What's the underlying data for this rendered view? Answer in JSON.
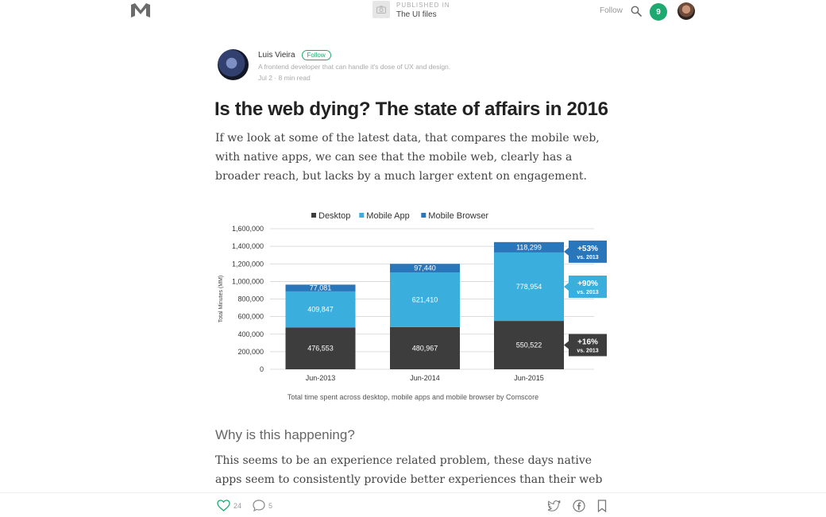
{
  "header": {
    "published_label": "PUBLISHED IN",
    "publication": "The UI files",
    "follow": "Follow",
    "notifications": "9"
  },
  "author": {
    "name": "Luis Vieira",
    "follow": "Follow",
    "bio": "A frontend developer that can handle it's dose of UX and design.",
    "meta": "Jul 2 · 8 min read"
  },
  "article": {
    "title": "Is the web dying? The state of affairs in 2016",
    "intro": "If we look at some of the latest data, that compares the mobile web, with native apps, we can see that the mobile web, clearly has a broader reach, but lacks by a much larger extent on engagement.",
    "caption": "Total time spent across desktop, mobile apps and mobile browser by Comscore",
    "subheading": "Why is this happening?",
    "body": "This seems to be an experience related problem, these days native apps seem to consistently provide better experiences than their web counterparts, with"
  },
  "chart_data": {
    "type": "bar",
    "stacked": true,
    "categories": [
      "Jun-2013",
      "Jun-2014",
      "Jun-2015"
    ],
    "series": [
      {
        "name": "Desktop",
        "color": "#3d3d3d",
        "values": [
          476553,
          480967,
          550522
        ],
        "labels": [
          "476,553",
          "480,967",
          "550,522"
        ]
      },
      {
        "name": "Mobile App",
        "color": "#3aaedc",
        "values": [
          409847,
          621410,
          778954
        ],
        "labels": [
          "409,847",
          "621,410",
          "778,954"
        ]
      },
      {
        "name": "Mobile Browser",
        "color": "#2a76bb",
        "values": [
          77081,
          97440,
          118299
        ],
        "labels": [
          "77,081",
          "97,440",
          "118,299"
        ]
      }
    ],
    "ylabel": "Total Minutes (MM)",
    "ylim": [
      0,
      1600000
    ],
    "yticks": [
      0,
      200000,
      400000,
      600000,
      800000,
      1000000,
      1200000,
      1400000,
      1600000
    ],
    "ytick_labels": [
      "0",
      "200,000",
      "400,000",
      "600,000",
      "800,000",
      "1,000,000",
      "1,200,000",
      "1,400,000",
      "1,600,000"
    ],
    "legend_position": "top",
    "grid": true,
    "annotations": [
      {
        "series": "Mobile Browser",
        "text": "+53%",
        "sub": "vs. 2013",
        "color": "#2a76bb"
      },
      {
        "series": "Mobile App",
        "text": "+90%",
        "sub": "vs. 2013",
        "color": "#3aaedc"
      },
      {
        "series": "Desktop",
        "text": "+16%",
        "sub": "vs. 2013",
        "color": "#3d3d3d"
      }
    ]
  },
  "footer": {
    "likes": "24",
    "responses": "5"
  }
}
